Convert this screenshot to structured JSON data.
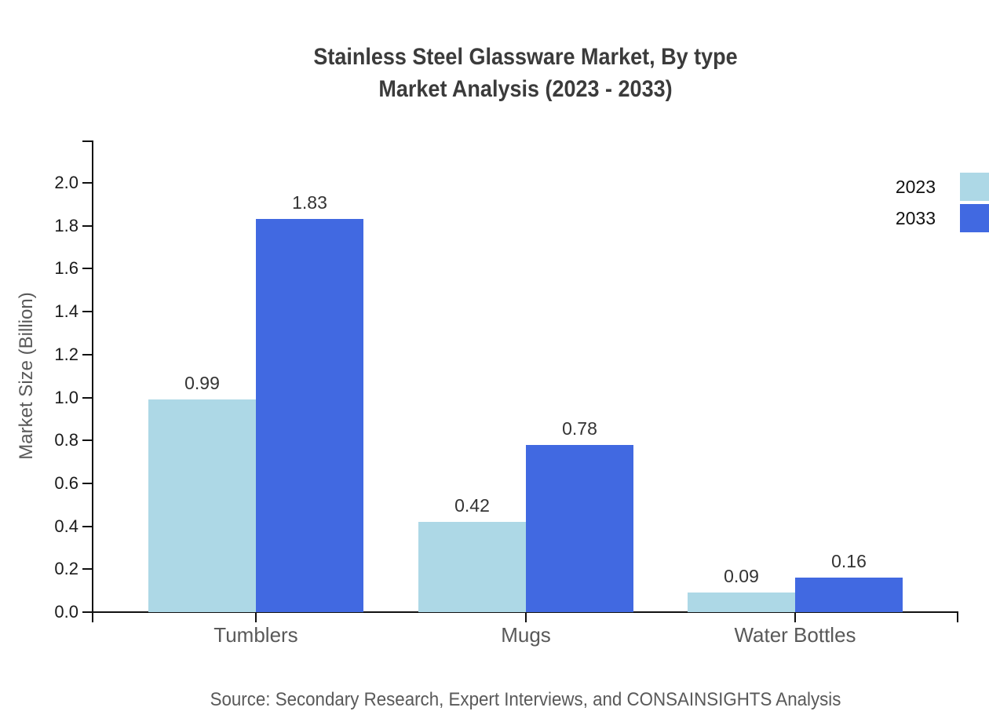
{
  "title": {
    "line1": "Stainless Steel Glassware Market, By type",
    "line2": "Market Analysis (2023 - 2033)"
  },
  "y_axis": {
    "label": "Market Size (Billion)",
    "tick_labels": [
      "2.0",
      "1.8",
      "1.6",
      "1.4",
      "1.2",
      "1.0",
      "0.8",
      "0.6",
      "0.4",
      "0.2",
      "0.0"
    ]
  },
  "legend": {
    "items": [
      {
        "label": "2023",
        "color": "#ADD8E6"
      },
      {
        "label": "2033",
        "color": "#4169E1"
      }
    ]
  },
  "source": "Source: Secondary Research, Expert Interviews, and CONSAINSIGHTS Analysis",
  "colors": {
    "series_2023": "#ADD8E6",
    "series_2033": "#4169E1",
    "axis": "#111111",
    "title_text": "#3b3b3b",
    "muted_text": "#595959"
  },
  "chart_data": {
    "type": "bar",
    "title": "Stainless Steel Glassware Market, By type Market Analysis (2023 - 2033)",
    "categories": [
      "Tumblers",
      "Mugs",
      "Water Bottles"
    ],
    "series": [
      {
        "name": "2023",
        "color": "#ADD8E6",
        "values": [
          0.99,
          0.42,
          0.09
        ]
      },
      {
        "name": "2033",
        "color": "#4169E1",
        "values": [
          1.83,
          0.78,
          0.16
        ]
      }
    ],
    "xlabel": "",
    "ylabel": "Market Size (Billion)",
    "ylim": [
      0,
      2.2
    ],
    "ytick_step": 0.2,
    "grid": false,
    "legend_position": "upper-right",
    "value_labels": true
  }
}
